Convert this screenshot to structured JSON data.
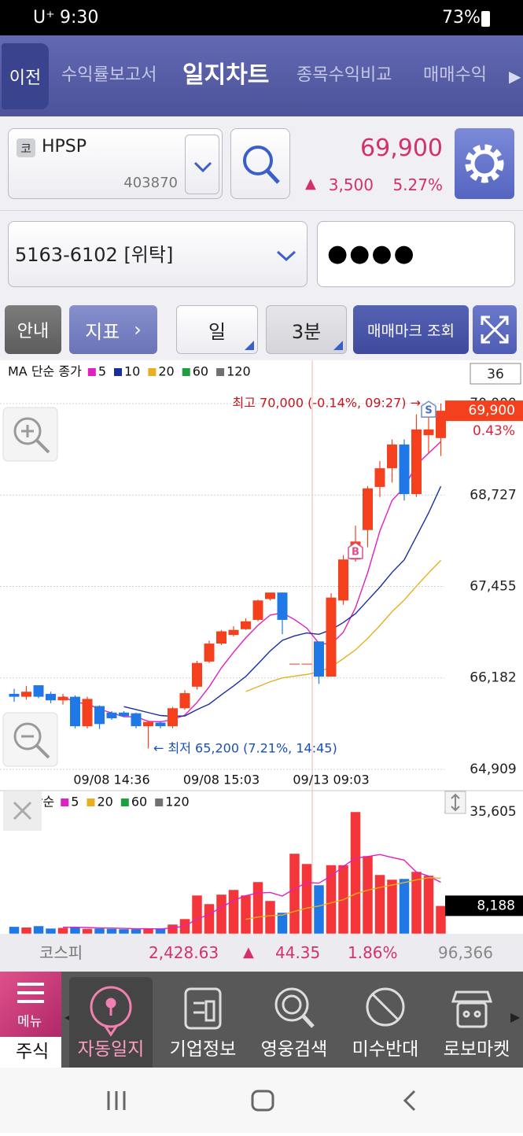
{
  "status_bar": {
    "carrier": "U⁺",
    "time": "9:30",
    "battery": "73%"
  },
  "tabs": {
    "back": "이전",
    "items": [
      "수익률보고서",
      "일지차트",
      "종목수익비교",
      "매매수익"
    ],
    "active": 1
  },
  "stock": {
    "market": "코",
    "name": "HPSP",
    "code": "403870",
    "price": "69,900",
    "change": "3,500",
    "change_rate": "5.27%"
  },
  "account": {
    "number": "5163-6102 [위탁]",
    "password": "●●●●"
  },
  "toolbar": {
    "guide": "안내",
    "indicator": "지표",
    "period": "일",
    "interval": "3분",
    "trade_mark": "매매마크 조회"
  },
  "chart_data": [
    {
      "type": "candlestick",
      "legend_title": "MA 단순 종가",
      "visible_count": 36,
      "ma": [
        {
          "period": 5,
          "color": "#e020c0"
        },
        {
          "period": 10,
          "color": "#1a2f9c"
        },
        {
          "period": 20,
          "color": "#e8b020"
        },
        {
          "period": 60,
          "color": "#1fa040"
        },
        {
          "period": 120,
          "color": "#707070"
        }
      ],
      "categories": [
        null,
        null,
        null,
        null,
        null,
        null,
        null,
        null,
        "09/08 14:36",
        null,
        null,
        null,
        null,
        null,
        null,
        null,
        null,
        "09/08 15:03",
        null,
        null,
        null,
        null,
        null,
        null,
        null,
        null,
        "09/13 09:03",
        null,
        null,
        null,
        null,
        null,
        null,
        null,
        null,
        null
      ],
      "open": [
        65960,
        65920,
        66080,
        65960,
        65870,
        65920,
        65510,
        65790,
        65700,
        65700,
        65690,
        65510,
        65560,
        65510,
        65760,
        66060,
        66410,
        66660,
        66780,
        66860,
        66990,
        67280,
        67370,
        66380,
        66380,
        66690,
        66200,
        67260,
        67830,
        68240,
        68840,
        69100,
        69430,
        68740,
        69560,
        69520
      ],
      "close": [
        65920,
        65990,
        65920,
        65870,
        65920,
        65510,
        65890,
        65540,
        65620,
        65650,
        65510,
        65570,
        65510,
        65760,
        65970,
        66390,
        66660,
        66830,
        66850,
        66970,
        67260,
        67370,
        66990,
        66380,
        66380,
        66200,
        67300,
        67830,
        68080,
        68820,
        69100,
        69430,
        68740,
        69640,
        69640,
        69900
      ],
      "high": [
        66030,
        66070,
        66080,
        65990,
        65960,
        65940,
        65920,
        65800,
        65720,
        65720,
        65700,
        65590,
        65580,
        65780,
        66010,
        66420,
        66700,
        66850,
        66900,
        67010,
        67270,
        67370,
        67370,
        66380,
        66380,
        66690,
        67360,
        67890,
        68300,
        68850,
        69200,
        69500,
        69500,
        69850,
        69900,
        70000
      ],
      "low": [
        65850,
        65880,
        65900,
        65830,
        65810,
        65480,
        65480,
        65470,
        65600,
        65640,
        65480,
        65200,
        65480,
        65480,
        65740,
        66020,
        66390,
        66640,
        66760,
        66850,
        66970,
        67260,
        66790,
        66380,
        66380,
        66100,
        66200,
        67200,
        67800,
        68000,
        68700,
        68900,
        68650,
        68700,
        69300,
        69270
      ],
      "up_color": "#f4401c",
      "down_color": "#1f78e6",
      "ylim": [
        64909,
        70580
      ],
      "yticks": [
        {
          "value": 64909,
          "label": "64,909"
        },
        {
          "value": 66182,
          "label": "66,182"
        },
        {
          "value": 67455,
          "label": "67,455"
        },
        {
          "value": 68727,
          "label": "68,727"
        },
        {
          "value": 70000,
          "label": "70,000"
        }
      ],
      "grid": true,
      "last_price": {
        "value": 69900,
        "label": "69,900"
      },
      "last_rate": "0.43%",
      "high_note": "최고 70,000 (-0.14%, 09:27) →",
      "low_note": "← 최저 65,200 (7.21%, 14:45)",
      "trade_marks": [
        {
          "index": 28,
          "label": "B"
        },
        {
          "index": 34,
          "label": "S"
        }
      ]
    },
    {
      "type": "bar",
      "legend_title": "MA 단순",
      "ma": [
        {
          "period": 5,
          "color": "#e020c0"
        },
        {
          "period": 20,
          "color": "#e8b020"
        },
        {
          "period": 60,
          "color": "#1fa040"
        },
        {
          "period": 120,
          "color": "#707070"
        }
      ],
      "values": [
        2100,
        1900,
        2300,
        1600,
        1800,
        2000,
        1500,
        1600,
        1500,
        1400,
        1400,
        1500,
        1500,
        2760,
        4360,
        11250,
        8730,
        11490,
        12860,
        11250,
        15160,
        9650,
        6200,
        23430,
        20440,
        14240,
        20100,
        20100,
        35605,
        22740,
        17230,
        15850,
        16080,
        18150,
        17000,
        8188
      ],
      "up_color": "#f4363a",
      "down_color": "#1f78e6",
      "ylim": [
        0,
        41800
      ],
      "yticks": [
        {
          "value": 35605,
          "label": "35,605"
        },
        {
          "value": 8188,
          "label": "8,188"
        }
      ]
    }
  ],
  "index_bar": {
    "name": "코스피",
    "value": "2,428.63",
    "change": "44.35",
    "rate": "1.86%",
    "volume": "96,366"
  },
  "bottom_menu": {
    "menu": "메뉴",
    "section": "주식",
    "items": [
      "자동일지",
      "기업정보",
      "영웅검색",
      "미수반대",
      "로보마켓"
    ]
  }
}
